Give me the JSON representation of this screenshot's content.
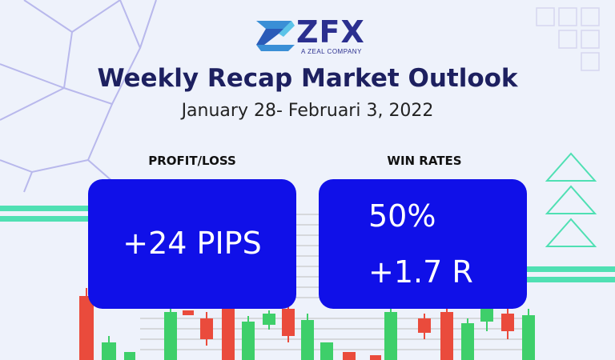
{
  "brand": {
    "name": "ZFX",
    "tagline": "A ZEAL COMPANY"
  },
  "headline": "Weekly Recap Market Outlook",
  "date_range": "January 28- Februari 3, 2022",
  "metrics": {
    "profit_loss": {
      "label": "PROFIT/LOSS",
      "value": "+24 PIPS"
    },
    "win_rates": {
      "label": "WIN RATES",
      "value_primary": "50%",
      "value_secondary": "+1.7 R"
    }
  },
  "colors": {
    "background": "#eef2fb",
    "card": "#1010e8",
    "headline": "#1d2060",
    "accent_teal": "#4fe0b3",
    "candle_green": "#3ecf6a",
    "candle_red": "#ea4b3c",
    "decor_purple": "#b8b8ec"
  }
}
